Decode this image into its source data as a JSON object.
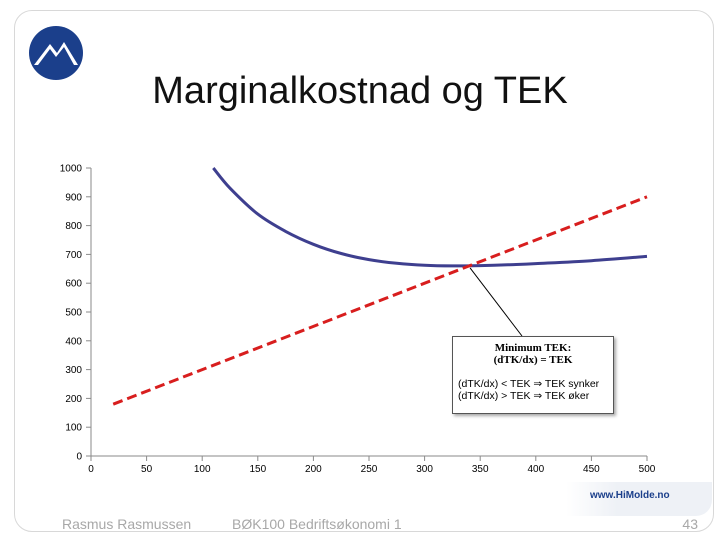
{
  "slide": {
    "title": "Marginalkostnad og TEK",
    "footer_left": "Rasmus Rasmussen",
    "footer_center": "BØK100 Bedriftsøkonomi 1",
    "page_number": "43",
    "website": "www.HiMolde.no",
    "logo_icon": "himolde-mountain-logo-icon"
  },
  "colors": {
    "tek_curve": "#3e3f8f",
    "mk_line": "#d81e1e",
    "logo_blue": "#1b3f8b"
  },
  "annotation": {
    "line1": "Minimum TEK:",
    "line2": "(dTK/dx) = TEK",
    "line3": "(dTK/dx) < TEK ⇒ TEK synker",
    "line4": "(dTK/dx) > TEK ⇒ TEK øker"
  },
  "chart_data": {
    "type": "line",
    "xlim": [
      0,
      500
    ],
    "ylim": [
      0,
      1000
    ],
    "x_ticks": [
      "0",
      "50",
      "100",
      "150",
      "200",
      "250",
      "300",
      "350",
      "400",
      "450",
      "500"
    ],
    "y_ticks": [
      "1000",
      "900",
      "800",
      "700",
      "600",
      "500",
      "400",
      "300",
      "200",
      "100",
      "0"
    ],
    "grid": false,
    "series": [
      {
        "style": "solid",
        "x": [
          110,
          125,
          150,
          175,
          200,
          225,
          250,
          275,
          300,
          325,
          350,
          375,
          400,
          450,
          500
        ],
        "y": [
          1000,
          930,
          840,
          780,
          735,
          703,
          682,
          669,
          662,
          660,
          661,
          664,
          668,
          678,
          693
        ]
      },
      {
        "style": "dashed",
        "x": [
          20,
          500
        ],
        "y": [
          180,
          900
        ]
      }
    ],
    "annotation_point": {
      "x": 340,
      "y": 660
    }
  }
}
